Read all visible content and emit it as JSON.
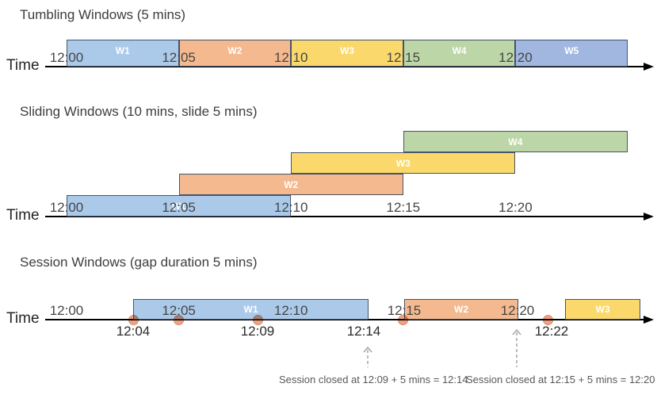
{
  "palette": {
    "blue": {
      "fill": "#ABCAEA",
      "border": "#44546A"
    },
    "orange": {
      "fill": "#F4B98F",
      "border": "#44546A"
    },
    "yellow": {
      "fill": "#FAD86B",
      "border": "#44546A"
    },
    "green": {
      "fill": "#BDD6A7",
      "border": "#44546A"
    },
    "blue2": {
      "fill": "#A1B7E0",
      "border": "#44546A"
    },
    "event_dot": {
      "fill": "#F0A183",
      "border": "#DC8C68"
    },
    "dashed_arrow": "#A6A6A6",
    "axis": "#000000",
    "title_text": "#3D3D3D",
    "tick_text": "#454545",
    "annotation_text": "#595959"
  },
  "sections": [
    {
      "id": "tumbling",
      "title": "Tumbling Windows (5 mins)",
      "time_label": "Time",
      "axis_ticks": [
        "12:00",
        "12:05",
        "12:10",
        "12:15",
        "12:20"
      ],
      "windows": [
        {
          "label": "W1",
          "start": "12:00",
          "end": "12:05",
          "color": "blue"
        },
        {
          "label": "W2",
          "start": "12:05",
          "end": "12:10",
          "color": "orange"
        },
        {
          "label": "W3",
          "start": "12:10",
          "end": "12:15",
          "color": "yellow"
        },
        {
          "label": "W4",
          "start": "12:15",
          "end": "12:20",
          "color": "green"
        },
        {
          "label": "W5",
          "start": "12:20",
          "end": "",
          "color": "blue2"
        }
      ]
    },
    {
      "id": "sliding",
      "title": "Sliding Windows (10 mins, slide 5 mins)",
      "time_label": "Time",
      "axis_ticks": [
        "12:00",
        "12:05",
        "12:10",
        "12:15",
        "12:20"
      ],
      "windows": [
        {
          "label": "W1",
          "start": "12:00",
          "end": "12:10",
          "color": "blue"
        },
        {
          "label": "W2",
          "start": "12:05",
          "end": "12:15",
          "color": "orange"
        },
        {
          "label": "W3",
          "start": "12:10",
          "end": "12:20",
          "color": "yellow"
        },
        {
          "label": "W4",
          "start": "12:15",
          "end": "",
          "color": "green"
        }
      ]
    },
    {
      "id": "session",
      "title": "Session Windows (gap duration 5 mins)",
      "time_label": "Time",
      "axis_ticks": [
        "12:00",
        "12:05",
        "12:10",
        "12:15",
        "12:20"
      ],
      "windows": [
        {
          "label": "W1",
          "start": "12:04",
          "end": "12:14",
          "color": "blue"
        },
        {
          "label": "W2",
          "start": "12:15",
          "end": "12:20",
          "color": "orange"
        },
        {
          "label": "W3",
          "start": "12:22",
          "end": "",
          "color": "yellow"
        }
      ],
      "event_dot_count": 5,
      "below_labels": [
        "12:04",
        "12:09",
        "12:14",
        "12:22"
      ],
      "annotations": [
        "Session closed at 12:09 + 5 mins = 12:14",
        "Session closed at 12:15 + 5 mins = 12:20"
      ]
    }
  ]
}
